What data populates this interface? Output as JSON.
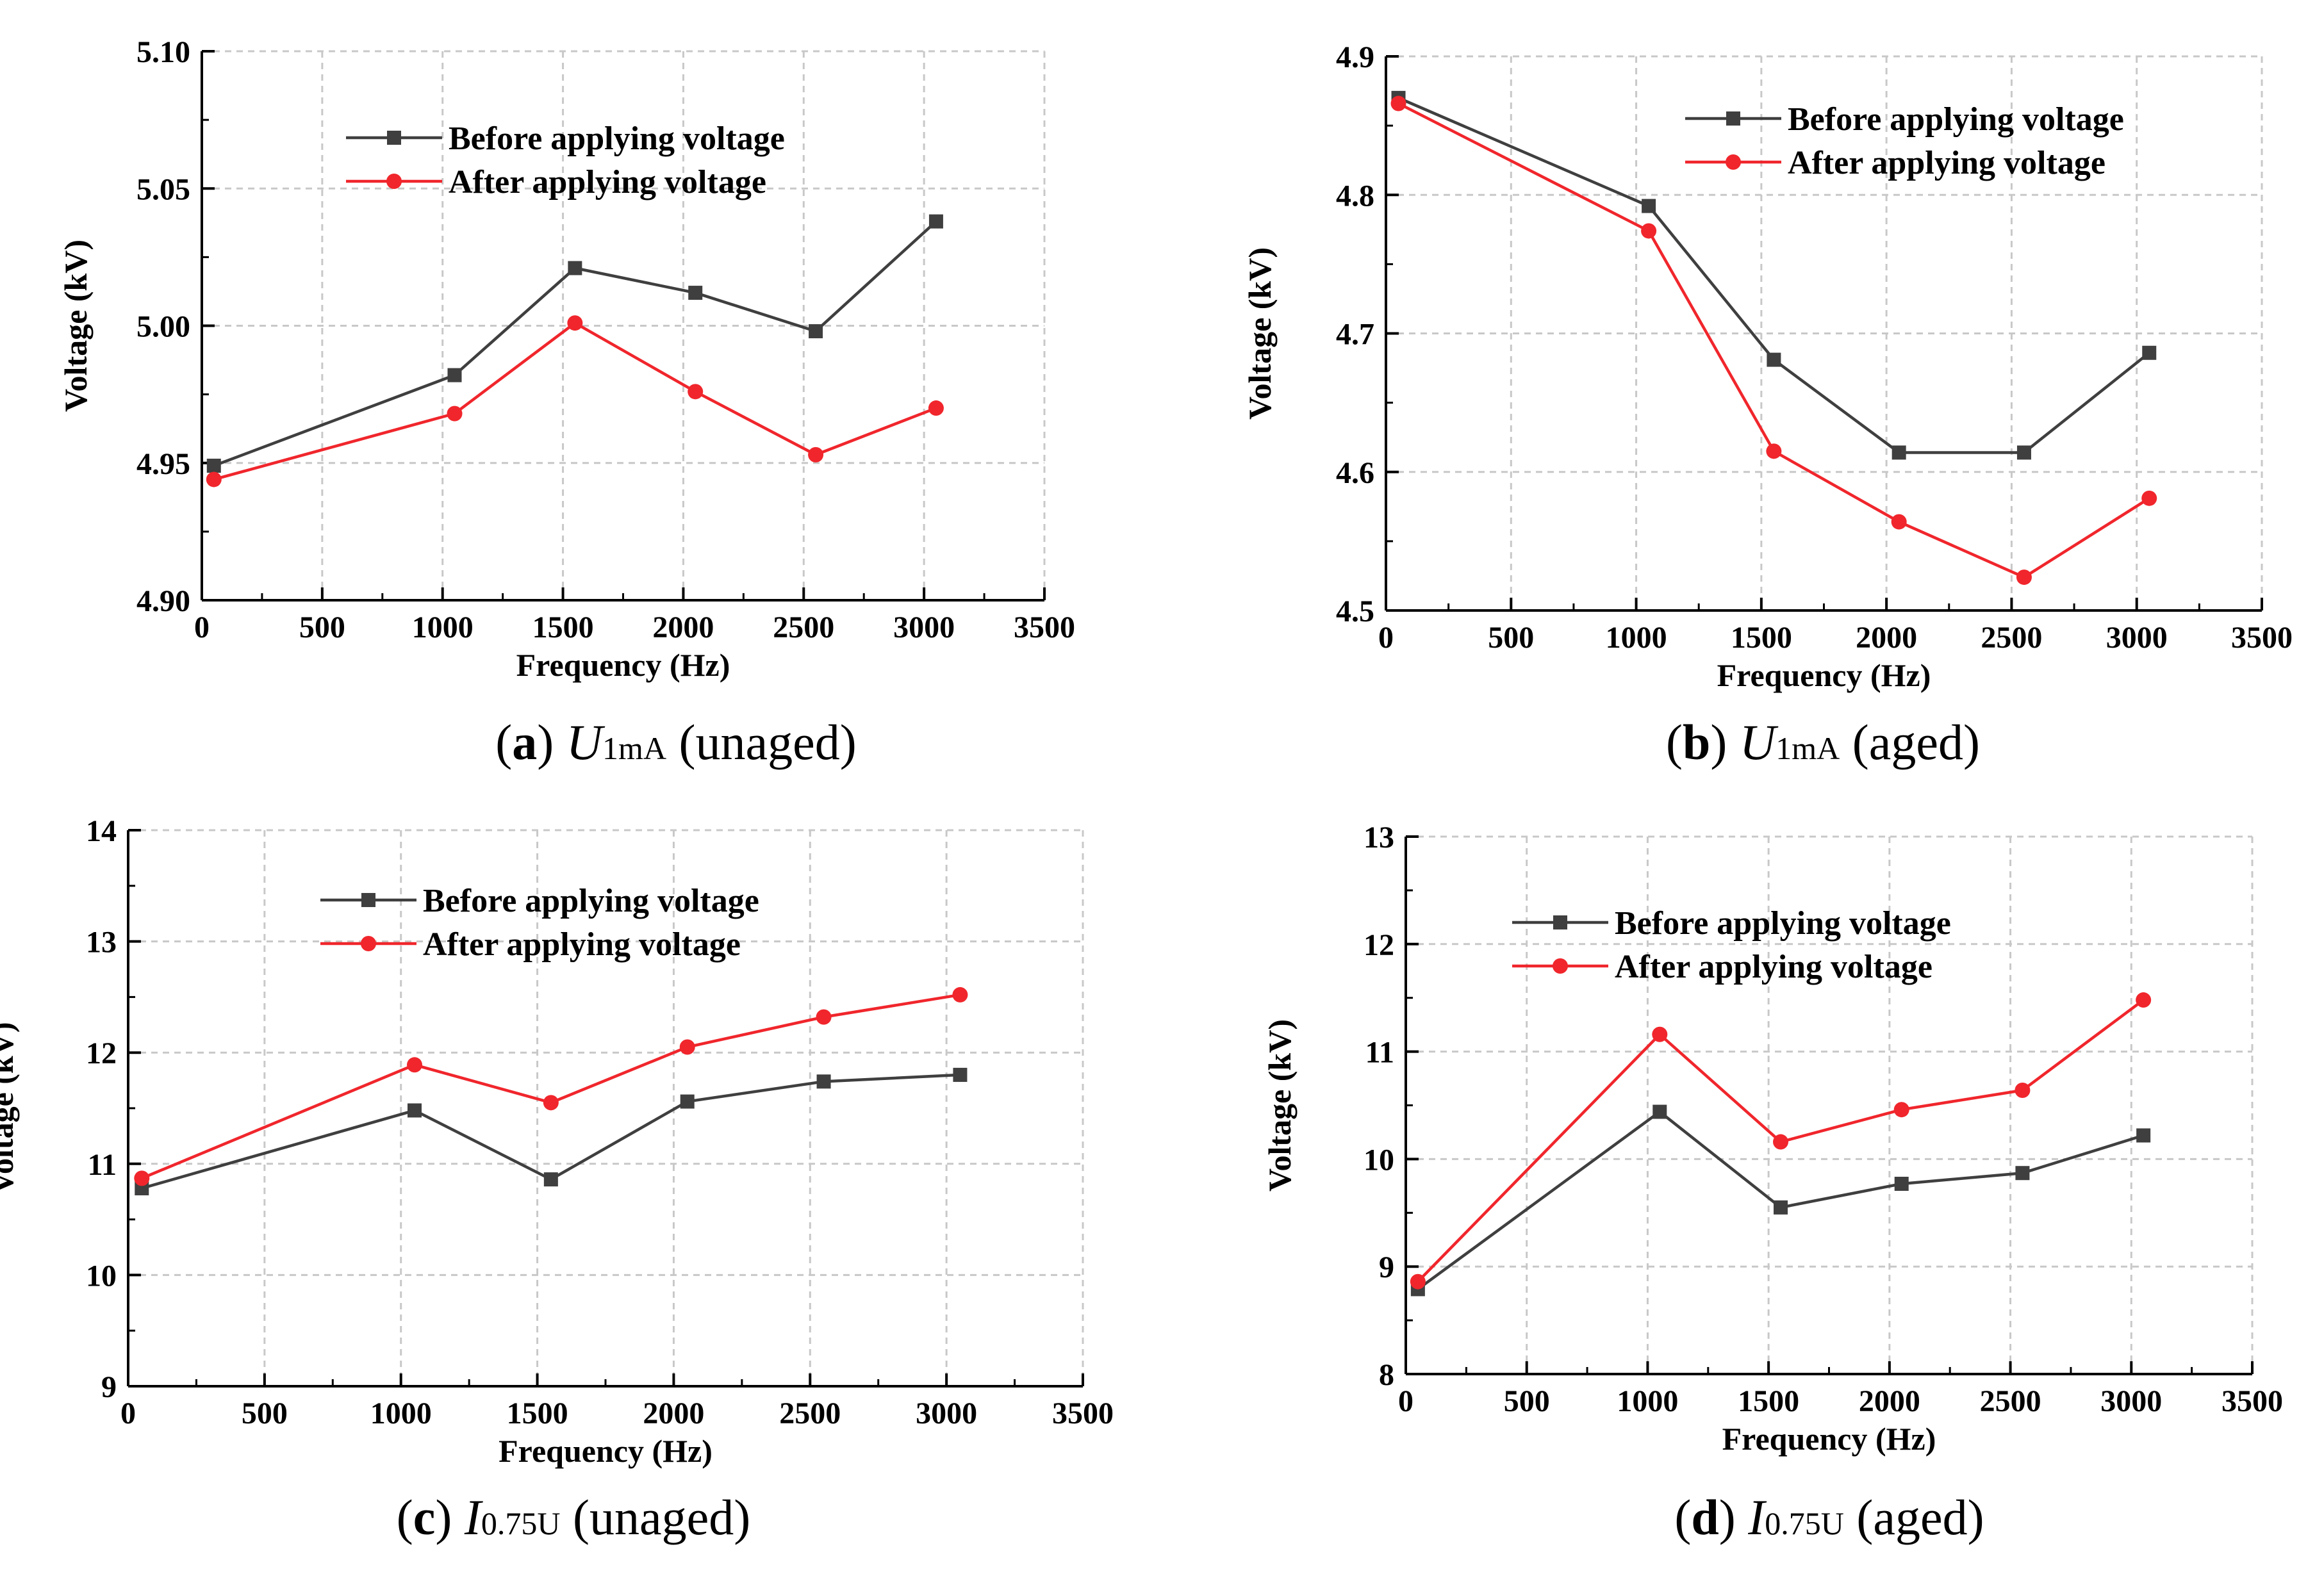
{
  "colors": {
    "before": "#3f3f3f",
    "after": "#f0262c",
    "grid": "#c8c8c8",
    "axis": "#000000"
  },
  "chart_data": [
    {
      "id": "a",
      "type": "line",
      "caption": {
        "letter": "a",
        "symbol": "U",
        "subscript": "1mA",
        "note": "(unaged)"
      },
      "xlabel": "Frequency (Hz)",
      "ylabel": "Voltage (kV)",
      "xlim": [
        0,
        3500
      ],
      "ylim": [
        4.9,
        5.1
      ],
      "xticks": [
        "0",
        "500",
        "1000",
        "1500",
        "2000",
        "2500",
        "3000",
        "3500"
      ],
      "yticks": [
        "4.90",
        "4.95",
        "5.00",
        "5.05",
        "5.10"
      ],
      "legend_position": "top-center",
      "x": [
        50,
        1050,
        1550,
        2050,
        2550,
        3050
      ],
      "series": [
        {
          "name": "Before applying voltage",
          "marker": "square",
          "values": [
            4.949,
            4.982,
            5.021,
            5.012,
            4.998,
            5.038
          ]
        },
        {
          "name": "After applying voltage",
          "marker": "circle",
          "values": [
            4.944,
            4.968,
            5.001,
            4.976,
            4.953,
            4.97
          ]
        }
      ]
    },
    {
      "id": "b",
      "type": "line",
      "caption": {
        "letter": "b",
        "symbol": "U",
        "subscript": "1mA",
        "note": "(aged)"
      },
      "xlabel": "Frequency (Hz)",
      "ylabel": "Voltage (kV)",
      "xlim": [
        0,
        3500
      ],
      "ylim": [
        4.5,
        4.9
      ],
      "xticks": [
        "0",
        "500",
        "1000",
        "1500",
        "2000",
        "2500",
        "3000",
        "3500"
      ],
      "yticks": [
        "4.5",
        "4.6",
        "4.7",
        "4.8",
        "4.9"
      ],
      "legend_position": "top-right",
      "x": [
        50,
        1050,
        1550,
        2050,
        2550,
        3050
      ],
      "series": [
        {
          "name": "Before applying voltage",
          "marker": "square",
          "values": [
            4.87,
            4.792,
            4.681,
            4.614,
            4.614,
            4.686
          ]
        },
        {
          "name": "After applying voltage",
          "marker": "circle",
          "values": [
            4.866,
            4.774,
            4.615,
            4.564,
            4.524,
            4.581
          ]
        }
      ]
    },
    {
      "id": "c",
      "type": "line",
      "caption": {
        "letter": "c",
        "symbol": "I",
        "subscript": "0.75U",
        "note": "(unaged)"
      },
      "xlabel": "Frequency (Hz)",
      "ylabel": "Voltage (kV)",
      "xlim": [
        0,
        3500
      ],
      "ylim": [
        9,
        14
      ],
      "xticks": [
        "0",
        "500",
        "1000",
        "1500",
        "2000",
        "2500",
        "3000",
        "3500"
      ],
      "yticks": [
        "9",
        "10",
        "11",
        "12",
        "13",
        "14"
      ],
      "legend_position": "top-center",
      "x": [
        50,
        1050,
        1550,
        2050,
        2550,
        3050
      ],
      "series": [
        {
          "name": "Before applying voltage",
          "marker": "square",
          "values": [
            10.78,
            11.48,
            10.86,
            11.56,
            11.74,
            11.8
          ]
        },
        {
          "name": "After applying voltage",
          "marker": "circle",
          "values": [
            10.87,
            11.89,
            11.55,
            12.05,
            12.32,
            12.52
          ]
        }
      ]
    },
    {
      "id": "d",
      "type": "line",
      "caption": {
        "letter": "d",
        "symbol": "I",
        "subscript": "0.75U",
        "note": "(aged)"
      },
      "xlabel": "Frequency (Hz)",
      "ylabel": "Voltage (kV)",
      "xlim": [
        0,
        3500
      ],
      "ylim": [
        8,
        13
      ],
      "xticks": [
        "0",
        "500",
        "1000",
        "1500",
        "2000",
        "2500",
        "3000",
        "3500"
      ],
      "yticks": [
        "8",
        "9",
        "10",
        "11",
        "12",
        "13"
      ],
      "legend_position": "top-center",
      "x": [
        50,
        1050,
        1550,
        2050,
        2550,
        3050
      ],
      "series": [
        {
          "name": "Before applying voltage",
          "marker": "square",
          "values": [
            8.79,
            10.44,
            9.55,
            9.77,
            9.87,
            10.22
          ]
        },
        {
          "name": "After applying voltage",
          "marker": "circle",
          "values": [
            8.86,
            11.16,
            10.16,
            10.46,
            10.64,
            11.48
          ]
        }
      ]
    }
  ]
}
